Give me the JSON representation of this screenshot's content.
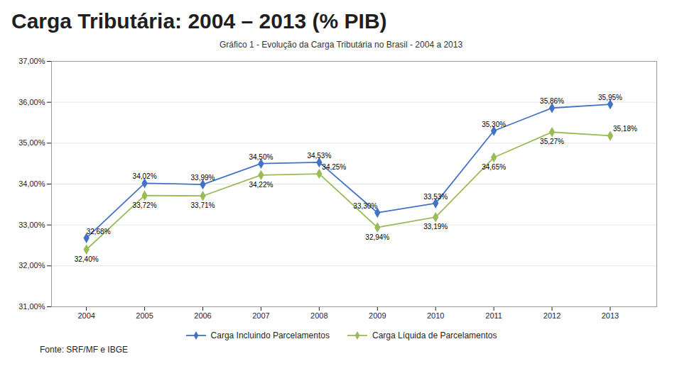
{
  "chart_data": {
    "type": "line",
    "title": "Carga Tributária: 2004 – 2013 (% PIB)",
    "subtitle": "Gráfico 1 - Evolução da Carga Tributária no Brasil - 2004 a 2013",
    "annotations": [
      "Fonte: SRF/MF e IBGE"
    ],
    "x": [
      2004,
      2005,
      2006,
      2007,
      2008,
      2009,
      2010,
      2011,
      2012,
      2013
    ],
    "series": [
      {
        "name": "Carga Incluindo Parcelamentos",
        "color": "#4472C4",
        "marker": "diamond",
        "values": [
          32.68,
          34.02,
          33.99,
          34.5,
          34.53,
          33.3,
          33.53,
          35.3,
          35.86,
          35.95
        ],
        "value_labels": [
          "32,68%",
          "34,02%",
          "33,99%",
          "34,50%",
          "34,53%",
          "33,30%",
          "33,53%",
          "35,30%",
          "35,86%",
          "35,95%"
        ]
      },
      {
        "name": "Carga Líquida de Parcelamentos",
        "color": "#9BBB59",
        "marker": "diamond",
        "values": [
          32.4,
          33.72,
          33.71,
          34.22,
          34.25,
          32.94,
          33.19,
          34.65,
          35.27,
          35.18
        ],
        "value_labels": [
          "32,40%",
          "33,72%",
          "33,71%",
          "34,22%",
          "34,25%",
          "32,94%",
          "33,19%",
          "34,65%",
          "35,27%",
          "35,18%"
        ]
      }
    ],
    "xlim": [
      2003.4,
      2013.8
    ],
    "xticks": [
      2004,
      2005,
      2006,
      2007,
      2008,
      2009,
      2010,
      2011,
      2012,
      2013
    ],
    "ylim": [
      31,
      37
    ],
    "yticks": [
      {
        "value": 31,
        "label": "31,00%"
      },
      {
        "value": 32,
        "label": "32,00%"
      },
      {
        "value": 33,
        "label": "33,00%"
      },
      {
        "value": 34,
        "label": "34,00%"
      },
      {
        "value": 35,
        "label": "35,00%"
      },
      {
        "value": 36,
        "label": "36,00%"
      },
      {
        "value": 37,
        "label": "37,00%"
      }
    ],
    "grid": true,
    "legend": "bottom",
    "data_labels": true
  }
}
